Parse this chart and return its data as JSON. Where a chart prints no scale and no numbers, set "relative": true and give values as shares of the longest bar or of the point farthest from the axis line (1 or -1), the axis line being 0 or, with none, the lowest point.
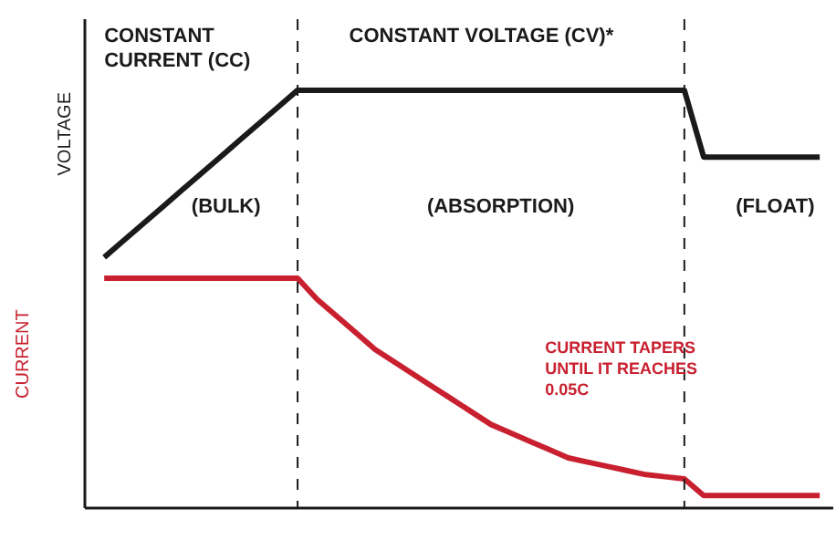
{
  "chart_data": {
    "type": "line",
    "relative": true,
    "line_style": "solid",
    "categories": [
      null,
      null,
      null,
      null,
      null,
      null,
      null,
      null,
      null,
      null,
      null,
      null,
      null,
      null,
      null,
      null,
      null,
      null,
      null,
      null,
      null,
      null,
      null,
      null,
      null,
      null,
      null,
      null,
      null,
      null,
      null,
      null,
      null,
      null,
      null,
      null,
      null,
      null
    ],
    "series": [
      {
        "name": "VOLTAGE",
        "color": "#1a1a1a",
        "values": [
          0.6,
          0.64,
          0.68,
          0.72,
          0.76,
          0.8,
          0.84,
          0.88,
          0.92,
          0.96,
          1.0,
          1.0,
          1.0,
          1.0,
          1.0,
          1.0,
          1.0,
          1.0,
          1.0,
          1.0,
          1.0,
          1.0,
          1.0,
          1.0,
          1.0,
          1.0,
          1.0,
          1.0,
          1.0,
          1.0,
          1.0,
          0.84,
          0.84,
          0.84,
          0.84,
          0.84,
          0.84,
          0.84
        ]
      },
      {
        "name": "CURRENT",
        "color": "#c8202f",
        "values": [
          0.55,
          0.55,
          0.55,
          0.55,
          0.55,
          0.55,
          0.55,
          0.55,
          0.55,
          0.55,
          0.55,
          0.5,
          0.46,
          0.42,
          0.38,
          0.35,
          0.32,
          0.29,
          0.26,
          0.23,
          0.2,
          0.18,
          0.16,
          0.14,
          0.12,
          0.11,
          0.1,
          0.09,
          0.08,
          0.075,
          0.07,
          0.03,
          0.03,
          0.03,
          0.03,
          0.03,
          0.03,
          0.03
        ]
      }
    ],
    "annotations": [
      "CONSTANT\nCURRENT (CC)",
      "CONSTANT VOLTAGE (CV)*",
      "(BULK)",
      "(ABSORPTION)",
      "(FLOAT)",
      "CURRENT TAPERS\nUNTIL IT REACHES\n0.05C"
    ]
  }
}
